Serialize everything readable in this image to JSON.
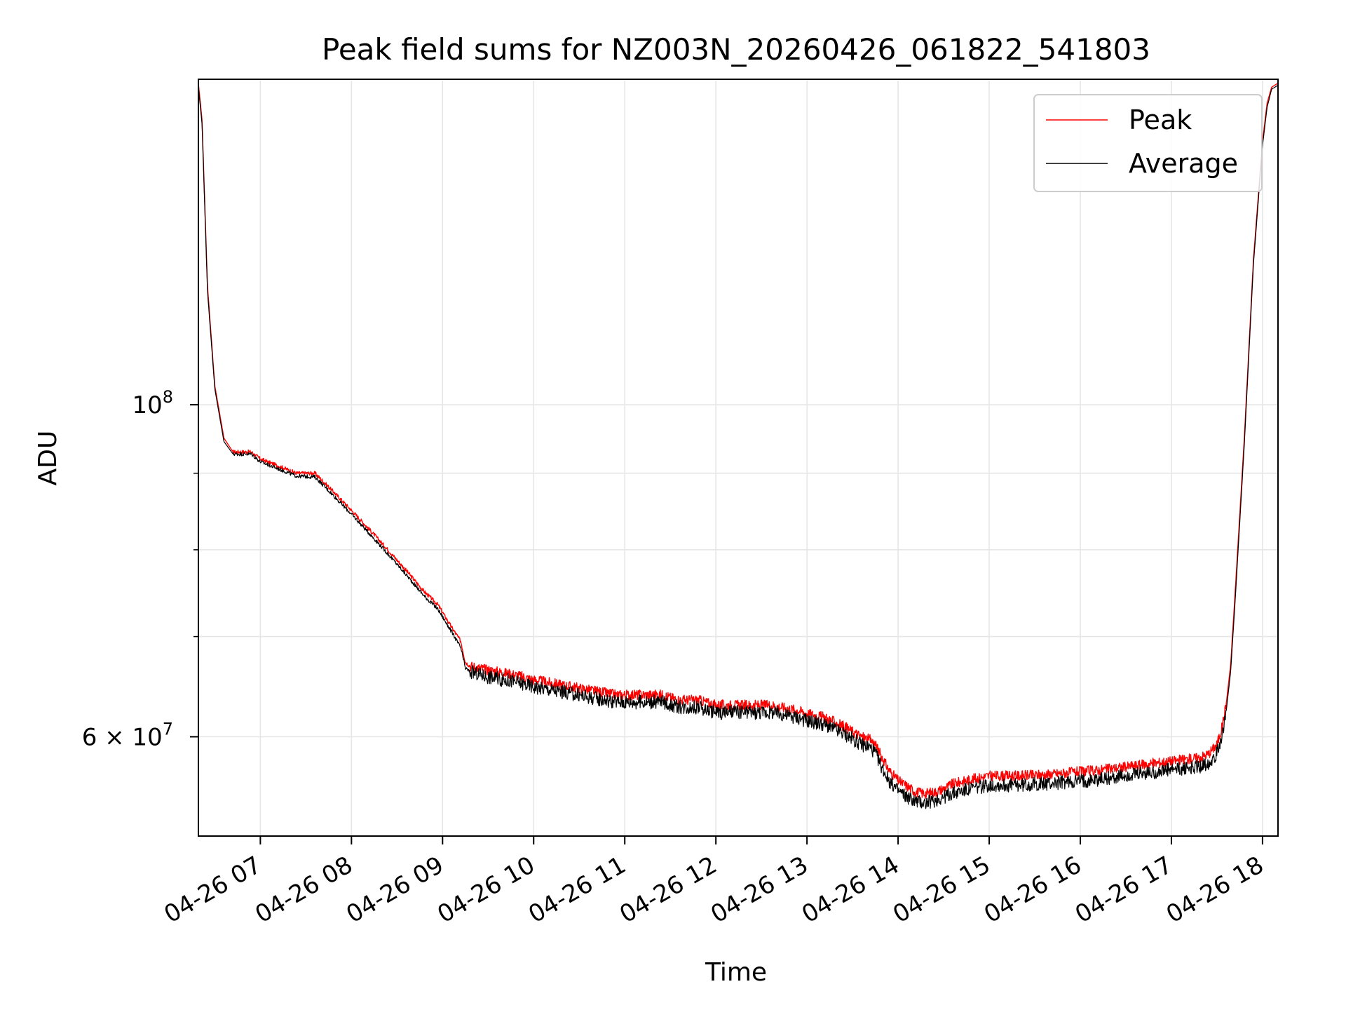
{
  "chart_data": {
    "type": "line",
    "title": "Peak field sums for NZ003N_20260426_061822_541803",
    "xlabel": "Time",
    "ylabel": "ADU",
    "yscale": "log",
    "ylim": [
      51500000,
      165000000
    ],
    "xlim": [
      6.32,
      18.17
    ],
    "grid": true,
    "legend_position": "top-right",
    "x_ticks": [
      {
        "value": 7,
        "label": "04-26 07"
      },
      {
        "value": 8,
        "label": "04-26 08"
      },
      {
        "value": 9,
        "label": "04-26 09"
      },
      {
        "value": 10,
        "label": "04-26 10"
      },
      {
        "value": 11,
        "label": "04-26 11"
      },
      {
        "value": 12,
        "label": "04-26 12"
      },
      {
        "value": 13,
        "label": "04-26 13"
      },
      {
        "value": 14,
        "label": "04-26 14"
      },
      {
        "value": 15,
        "label": "04-26 15"
      },
      {
        "value": 16,
        "label": "04-26 16"
      },
      {
        "value": 17,
        "label": "04-26 17"
      },
      {
        "value": 18,
        "label": "04-26 18"
      }
    ],
    "y_major_ticks": [
      {
        "value": 100000000,
        "base": "10",
        "exp": "8"
      },
      {
        "value": 60000000,
        "base": "6 × 10",
        "exp": "7"
      }
    ],
    "y_minor_ticks": [
      70000000,
      80000000,
      90000000
    ],
    "series": [
      {
        "name": "Peak",
        "color": "#ff0000",
        "x": [
          6.32,
          6.36,
          6.42,
          6.5,
          6.6,
          6.7,
          6.8,
          6.9,
          7.0,
          7.2,
          7.4,
          7.6,
          7.8,
          8.0,
          8.2,
          8.4,
          8.6,
          8.8,
          8.95,
          9.1,
          9.2,
          9.25,
          9.3,
          9.5,
          9.8,
          10.0,
          10.3,
          10.6,
          10.9,
          11.2,
          11.4,
          11.6,
          11.8,
          12.0,
          12.3,
          12.6,
          12.9,
          13.0,
          13.2,
          13.4,
          13.6,
          13.7,
          13.75,
          13.8,
          13.9,
          14.0,
          14.1,
          14.2,
          14.3,
          14.4,
          14.5,
          14.6,
          14.8,
          15.0,
          15.3,
          15.6,
          15.9,
          16.2,
          16.5,
          16.8,
          17.0,
          17.2,
          17.3,
          17.4,
          17.5,
          17.55,
          17.6,
          17.65,
          17.7,
          17.8,
          17.9,
          18.0,
          18.05,
          18.1,
          18.17
        ],
        "y": [
          164000000,
          155000000,
          120000000,
          103000000,
          95000000,
          93000000,
          93000000,
          93000000,
          92000000,
          91000000,
          90000000,
          90000000,
          87500000,
          85000000,
          82500000,
          80000000,
          77500000,
          75000000,
          73500000,
          71000000,
          69500000,
          67300000,
          66900000,
          66500000,
          66000000,
          65500000,
          65000000,
          64500000,
          64000000,
          64000000,
          64000000,
          63500000,
          63500000,
          63000000,
          63000000,
          63000000,
          62500000,
          62200000,
          61800000,
          61000000,
          60000000,
          59700000,
          59300000,
          58500000,
          57000000,
          56100000,
          55600000,
          55100000,
          55000000,
          55100000,
          55400000,
          55800000,
          56200000,
          56500000,
          56500000,
          56600000,
          56800000,
          57000000,
          57300000,
          57600000,
          57800000,
          58000000,
          58100000,
          58400000,
          59300000,
          60700000,
          63000000,
          67000000,
          75000000,
          95000000,
          125000000,
          150000000,
          159000000,
          163000000,
          164000000
        ]
      },
      {
        "name": "Average",
        "color": "#000000",
        "x": [
          6.32,
          6.36,
          6.42,
          6.5,
          6.6,
          6.7,
          6.8,
          6.9,
          7.0,
          7.2,
          7.4,
          7.6,
          7.8,
          8.0,
          8.2,
          8.4,
          8.6,
          8.8,
          8.95,
          9.1,
          9.2,
          9.25,
          9.3,
          9.5,
          9.8,
          10.0,
          10.3,
          10.6,
          10.9,
          11.2,
          11.4,
          11.6,
          11.8,
          12.0,
          12.3,
          12.6,
          12.9,
          13.0,
          13.2,
          13.4,
          13.6,
          13.7,
          13.75,
          13.8,
          13.9,
          14.0,
          14.1,
          14.2,
          14.3,
          14.4,
          14.5,
          14.6,
          14.8,
          15.0,
          15.3,
          15.6,
          15.9,
          16.2,
          16.5,
          16.8,
          17.0,
          17.2,
          17.3,
          17.4,
          17.5,
          17.55,
          17.6,
          17.65,
          17.7,
          17.8,
          17.9,
          18.0,
          18.05,
          18.1,
          18.17
        ],
        "y": [
          163000000,
          154000000,
          119000000,
          102500000,
          94500000,
          92700000,
          92700000,
          92700000,
          91600000,
          90600000,
          89600000,
          89500000,
          87000000,
          84500000,
          82000000,
          79500000,
          77000000,
          74500000,
          73000000,
          70500000,
          68800000,
          66700000,
          66300000,
          65800000,
          65300000,
          64800000,
          64300000,
          63800000,
          63300000,
          63300000,
          63300000,
          62800000,
          62800000,
          62300000,
          62300000,
          62300000,
          61800000,
          61500000,
          61100000,
          60300000,
          59300000,
          59000000,
          58500000,
          57600000,
          56100000,
          55200000,
          54700000,
          54300000,
          54200000,
          54400000,
          54700000,
          55000000,
          55400000,
          55700000,
          55700000,
          55800000,
          56000000,
          56200000,
          56500000,
          56800000,
          57000000,
          57200000,
          57300000,
          57600000,
          58500000,
          60000000,
          62300000,
          66300000,
          74000000,
          94000000,
          124000000,
          149000000,
          158000000,
          162500000,
          163500000
        ]
      }
    ]
  }
}
